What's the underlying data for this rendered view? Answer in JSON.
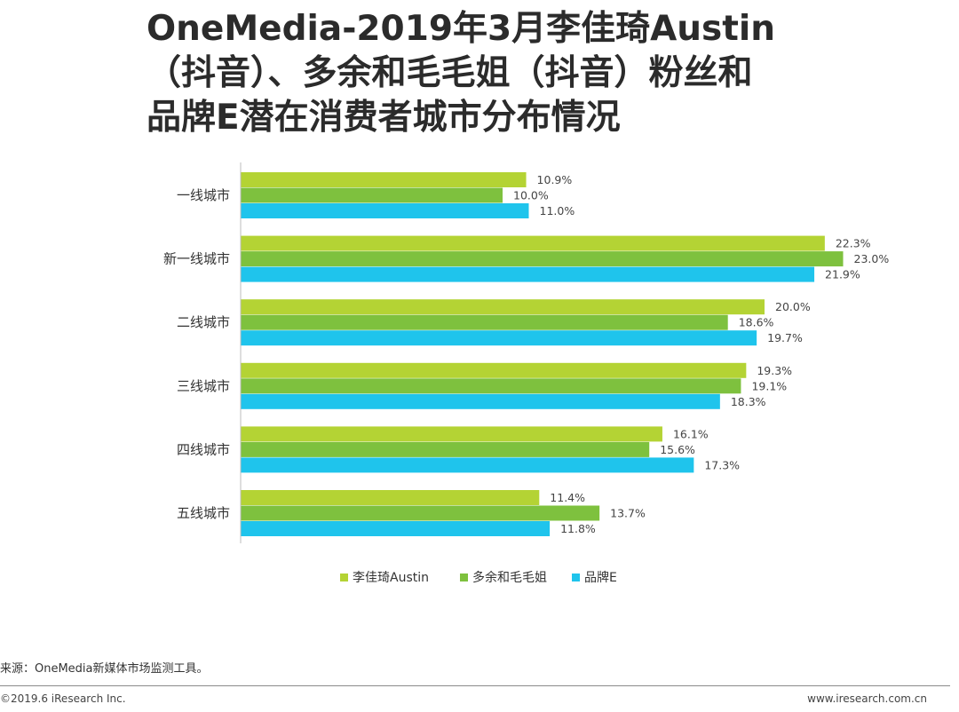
{
  "title_lines": [
    "OneMedia-2019年3月李佳琦Austin",
    "（抖音）、多余和毛毛姐（抖音）粉丝和",
    "品牌E潜在消费者城市分布情况"
  ],
  "source": "来源：OneMedia新媒体市场监测工具。",
  "copyright": "©2019.6 iResearch Inc.",
  "website": "www.iresearch.com.cn",
  "chart_data": {
    "type": "bar",
    "orientation": "horizontal",
    "categories": [
      "一线城市",
      "新一线城市",
      "二线城市",
      "三线城市",
      "四线城市",
      "五线城市"
    ],
    "series": [
      {
        "name": "李佳琦Austin",
        "color": "#b4d334",
        "values": [
          10.9,
          22.3,
          20.0,
          19.3,
          16.1,
          11.4
        ]
      },
      {
        "name": "多余和毛毛姐",
        "color": "#7ec13e",
        "values": [
          10.0,
          23.0,
          18.6,
          19.1,
          15.6,
          13.7
        ]
      },
      {
        "name": "品牌E",
        "color": "#1fc4ec",
        "values": [
          11.0,
          21.9,
          19.7,
          18.3,
          17.3,
          11.8
        ]
      }
    ],
    "value_suffix": "%",
    "xlim": [
      0,
      24
    ],
    "legend_position": "bottom-center",
    "grid": false
  }
}
